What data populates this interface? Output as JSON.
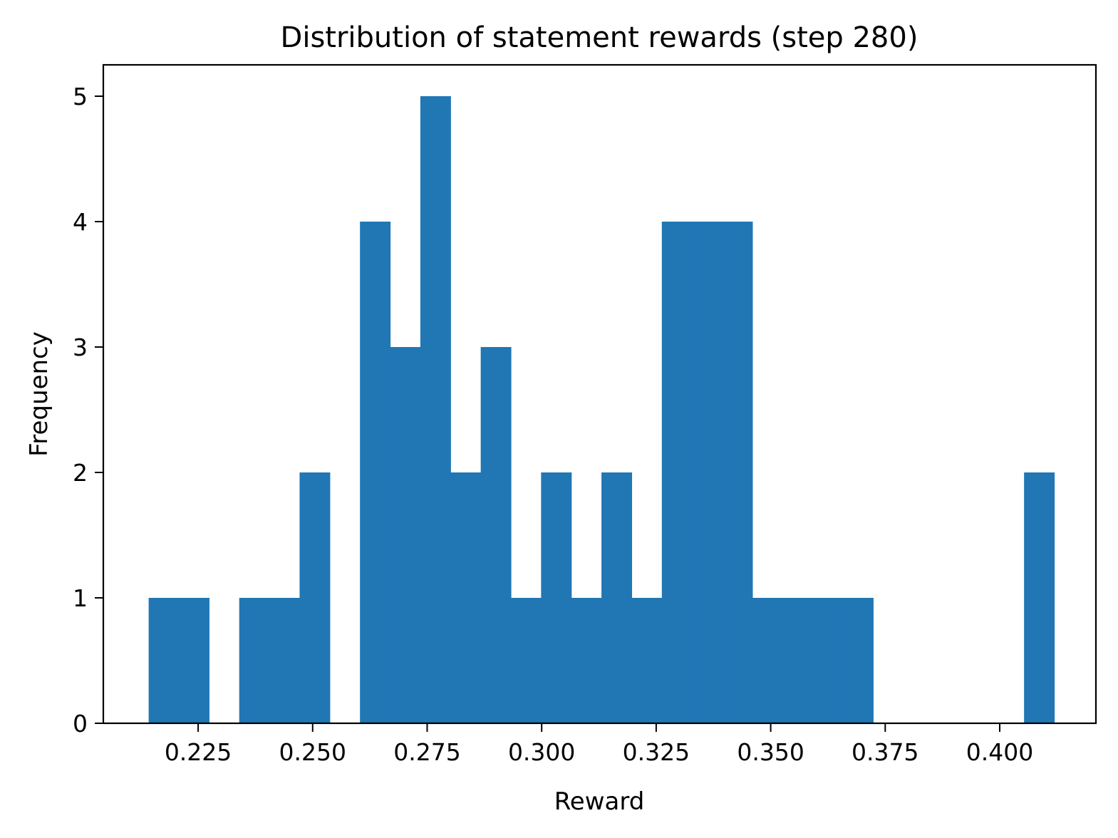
{
  "chart_data": {
    "type": "bar",
    "title": "Distribution of statement rewards (step 280)",
    "xlabel": "Reward",
    "ylabel": "Frequency",
    "bin_start": 0.2142,
    "bin_width": 0.00659,
    "counts": [
      1,
      1,
      0,
      1,
      1,
      2,
      0,
      4,
      3,
      5,
      2,
      3,
      1,
      2,
      1,
      2,
      1,
      4,
      4,
      4,
      1,
      1,
      1,
      1,
      0,
      0,
      0,
      0,
      0,
      2
    ],
    "xlim": [
      0.2043,
      0.421
    ],
    "ylim": [
      0,
      5.25
    ],
    "xticks": [
      0.225,
      0.25,
      0.275,
      0.3,
      0.325,
      0.35,
      0.375,
      0.4
    ],
    "xtick_labels": [
      "0.225",
      "0.250",
      "0.275",
      "0.300",
      "0.325",
      "0.350",
      "0.375",
      "0.400"
    ],
    "yticks": [
      0,
      1,
      2,
      3,
      4,
      5
    ],
    "ytick_labels": [
      "0",
      "1",
      "2",
      "3",
      "4",
      "5"
    ],
    "bar_color": "#2077b4",
    "grid": false,
    "legend": false
  }
}
